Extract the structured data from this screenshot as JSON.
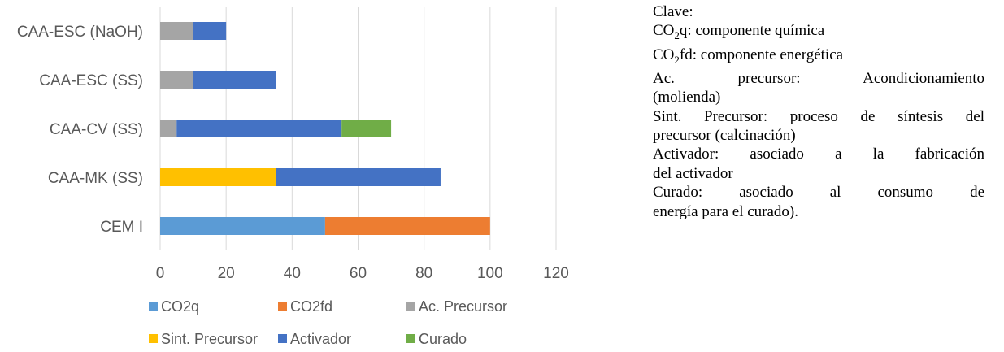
{
  "chart_data": {
    "type": "bar",
    "orientation": "horizontal",
    "stacked": true,
    "categories": [
      "CEM I",
      "CAA-MK (SS)",
      "CAA-CV (SS)",
      "CAA-ESC (SS)",
      "CAA-ESC (NaOH)"
    ],
    "series": [
      {
        "name": "CO2q",
        "color": "#5B9BD5",
        "values": [
          50,
          0,
          0,
          0,
          0
        ]
      },
      {
        "name": "CO2fd",
        "color": "#ED7D31",
        "values": [
          50,
          0,
          0,
          0,
          0
        ]
      },
      {
        "name": "Ac. Precursor",
        "color": "#A5A5A5",
        "values": [
          0,
          0,
          5,
          10,
          10
        ]
      },
      {
        "name": "Sint. Precursor",
        "color": "#FFC000",
        "values": [
          0,
          35,
          0,
          0,
          0
        ]
      },
      {
        "name": "Activador",
        "color": "#4472C4",
        "values": [
          0,
          50,
          50,
          25,
          10
        ]
      },
      {
        "name": "Curado",
        "color": "#70AD47",
        "values": [
          0,
          0,
          15,
          0,
          0
        ]
      }
    ],
    "xlim": [
      0,
      120
    ],
    "xticks": [
      "0",
      "20",
      "40",
      "60",
      "80",
      "100",
      "120"
    ],
    "grid": true,
    "legend": "bottom",
    "title": "",
    "xlabel": "",
    "ylabel": ""
  },
  "key": {
    "title": "Clave:",
    "co2q": {
      "prefix": "CO",
      "sub": "2",
      "rest": "q: componente química"
    },
    "co2fd": {
      "prefix": "CO",
      "sub": "2",
      "rest": "fd: componente energética"
    },
    "ac_precursor_1": "Ac. precursor: Acondicionamiento",
    "ac_precursor_2": "(molienda)",
    "sint_1": "Sint. Precursor: proceso de síntesis del",
    "sint_2": "precursor (calcinación)",
    "activador_1": "Activador: asociado a la fabricación",
    "activador_2": "del activador",
    "curado_1": "Curado: asociado al consumo de",
    "curado_2": "energía para el curado)."
  }
}
